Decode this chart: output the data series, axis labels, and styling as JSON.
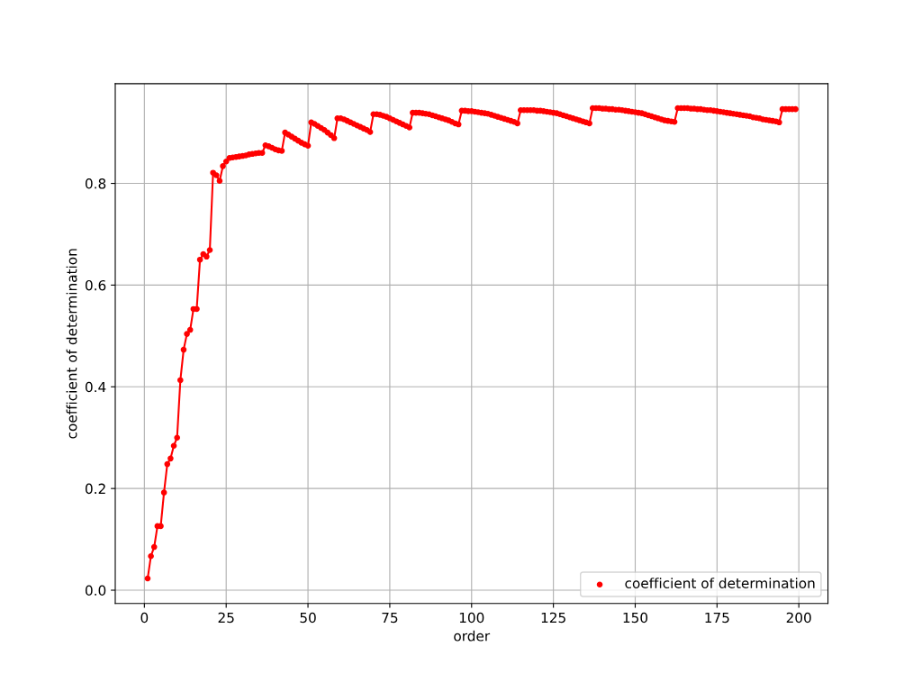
{
  "chart_data": {
    "type": "line",
    "xlabel": "order",
    "ylabel": "coefficient of determination",
    "x": [
      1,
      2,
      3,
      4,
      5,
      6,
      7,
      8,
      9,
      10,
      11,
      12,
      13,
      14,
      15,
      16,
      17,
      18,
      19,
      20,
      21,
      22,
      23,
      24,
      25,
      26,
      27,
      28,
      29,
      30,
      31,
      32,
      33,
      34,
      35,
      36,
      37,
      38,
      39,
      40,
      41,
      42,
      43,
      44,
      45,
      46,
      47,
      48,
      49,
      50,
      51,
      52,
      53,
      54,
      55,
      56,
      57,
      58,
      59,
      60,
      61,
      62,
      63,
      64,
      65,
      66,
      67,
      68,
      69,
      70,
      71,
      72,
      73,
      74,
      75,
      76,
      77,
      78,
      79,
      80,
      81,
      82,
      83,
      84,
      85,
      86,
      87,
      88,
      89,
      90,
      91,
      92,
      93,
      94,
      95,
      96,
      97,
      98,
      99,
      100,
      101,
      102,
      103,
      104,
      105,
      106,
      107,
      108,
      109,
      110,
      111,
      112,
      113,
      114,
      115,
      116,
      117,
      118,
      119,
      120,
      121,
      122,
      123,
      124,
      125,
      126,
      127,
      128,
      129,
      130,
      131,
      132,
      133,
      134,
      135,
      136,
      137,
      138,
      139,
      140,
      141,
      142,
      143,
      144,
      145,
      146,
      147,
      148,
      149,
      150,
      151,
      152,
      153,
      154,
      155,
      156,
      157,
      158,
      159,
      160,
      161,
      162,
      163,
      164,
      165,
      166,
      167,
      168,
      169,
      170,
      171,
      172,
      173,
      174,
      175,
      176,
      177,
      178,
      179,
      180,
      181,
      182,
      183,
      184,
      185,
      186,
      187,
      188,
      189,
      190,
      191,
      192,
      193,
      194,
      195,
      196,
      197,
      198,
      199
    ],
    "series": [
      {
        "name": "coefficient of determination",
        "color": "#ff0000",
        "values": [
          0.023,
          0.067,
          0.085,
          0.126,
          0.126,
          0.192,
          0.248,
          0.259,
          0.284,
          0.3,
          0.413,
          0.473,
          0.504,
          0.512,
          0.553,
          0.553,
          0.65,
          0.661,
          0.656,
          0.669,
          0.821,
          0.816,
          0.805,
          0.834,
          0.843,
          0.85,
          0.851,
          0.852,
          0.853,
          0.854,
          0.855,
          0.857,
          0.858,
          0.859,
          0.86,
          0.86,
          0.875,
          0.873,
          0.87,
          0.867,
          0.865,
          0.864,
          0.9,
          0.896,
          0.892,
          0.888,
          0.884,
          0.88,
          0.877,
          0.874,
          0.92,
          0.917,
          0.913,
          0.909,
          0.905,
          0.9,
          0.895,
          0.889,
          0.928,
          0.928,
          0.926,
          0.923,
          0.92,
          0.917,
          0.914,
          0.911,
          0.908,
          0.905,
          0.901,
          0.936,
          0.936,
          0.935,
          0.933,
          0.931,
          0.928,
          0.925,
          0.922,
          0.919,
          0.916,
          0.913,
          0.91,
          0.939,
          0.939,
          0.939,
          0.938,
          0.937,
          0.936,
          0.934,
          0.932,
          0.93,
          0.928,
          0.926,
          0.924,
          0.921,
          0.918,
          0.916,
          0.943,
          0.943,
          0.942,
          0.942,
          0.941,
          0.94,
          0.939,
          0.938,
          0.937,
          0.935,
          0.933,
          0.931,
          0.929,
          0.927,
          0.925,
          0.923,
          0.921,
          0.918,
          0.944,
          0.944,
          0.944,
          0.944,
          0.944,
          0.943,
          0.943,
          0.942,
          0.941,
          0.94,
          0.939,
          0.938,
          0.936,
          0.934,
          0.932,
          0.93,
          0.928,
          0.926,
          0.924,
          0.922,
          0.92,
          0.918,
          0.948,
          0.948,
          0.948,
          0.947,
          0.947,
          0.946,
          0.946,
          0.945,
          0.945,
          0.944,
          0.943,
          0.942,
          0.941,
          0.94,
          0.939,
          0.938,
          0.936,
          0.934,
          0.932,
          0.93,
          0.928,
          0.926,
          0.924,
          0.923,
          0.922,
          0.921,
          0.948,
          0.948,
          0.948,
          0.948,
          0.947,
          0.947,
          0.946,
          0.946,
          0.945,
          0.944,
          0.944,
          0.943,
          0.942,
          0.941,
          0.94,
          0.939,
          0.938,
          0.937,
          0.936,
          0.935,
          0.934,
          0.933,
          0.932,
          0.93,
          0.929,
          0.928,
          0.926,
          0.925,
          0.924,
          0.923,
          0.922,
          0.92,
          0.946,
          0.946,
          0.946,
          0.946,
          0.946
        ]
      }
    ],
    "marker": "circle",
    "line_style": "solid",
    "xlim": [
      -8.9,
      208.9
    ],
    "xticks": [
      0,
      25,
      50,
      75,
      100,
      125,
      150,
      175,
      200
    ],
    "ylim": [
      -0.026,
      0.996
    ],
    "yticks": [
      {
        "value": 0,
        "label": "0.0"
      },
      {
        "value": 0.2,
        "label": "0.2"
      },
      {
        "value": 0.4,
        "label": "0.4"
      },
      {
        "value": 0.6,
        "label": "0.6"
      },
      {
        "value": 0.8,
        "label": "0.8"
      }
    ],
    "grid": true,
    "legend": "lower right"
  }
}
